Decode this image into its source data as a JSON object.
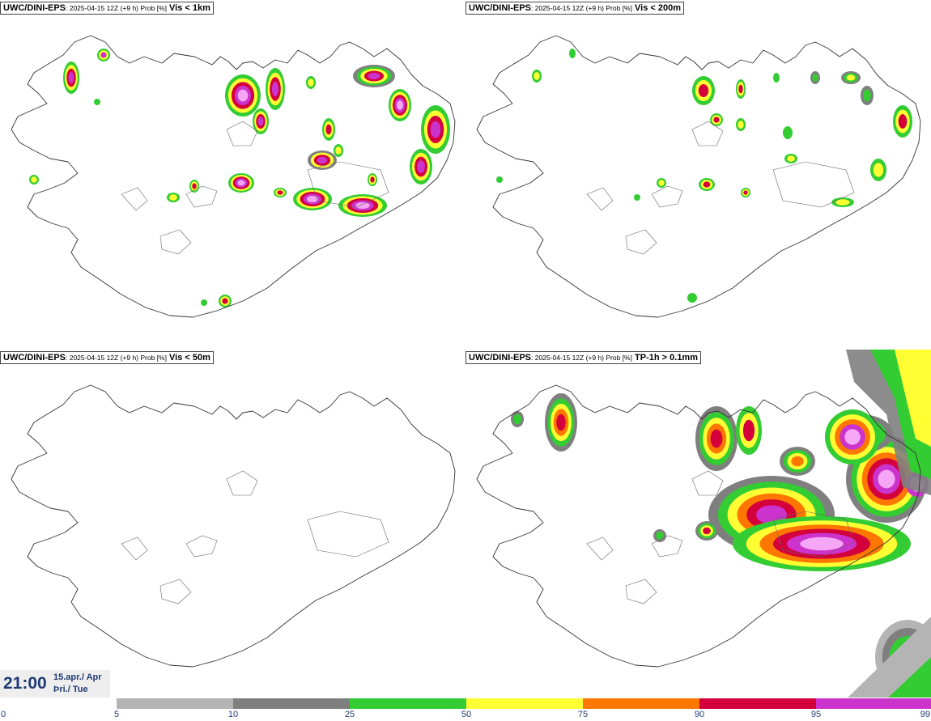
{
  "panels": [
    {
      "model": "UWC/DINI-EPS",
      "meta": ": 2025-04-15 12Z (+9 h) Prob [%]",
      "var": "Vis < 1km"
    },
    {
      "model": "UWC/DINI-EPS",
      "meta": ": 2025-04-15 12Z (+9 h) Prob [%]",
      "var": "Vis < 200m"
    },
    {
      "model": "UWC/DINI-EPS",
      "meta": ": 2025-04-15 12Z (+9 h) Prob [%]",
      "var": "Vis < 50m"
    },
    {
      "model": "UWC/DINI-EPS",
      "meta": ": 2025-04-15 12Z (+9 h) Prob [%]",
      "var": "TP-1h > 0.1mm"
    }
  ],
  "valid_time": {
    "clock": "21:00",
    "date_line1": "15.apr./ Apr",
    "date_line2": "Þri./ Tue"
  },
  "colorbar": {
    "ticks": [
      "0",
      "5",
      "10",
      "25",
      "50",
      "75",
      "90",
      "95",
      "99"
    ],
    "colors": [
      "#ffffff",
      "#b4b4b4",
      "#7f7f7f",
      "#33cc33",
      "#ffff33",
      "#ff7700",
      "#d4003c",
      "#cc33cc",
      "#f5a6f5"
    ],
    "tick_color": "#1f3b73"
  },
  "colors": {
    "coast": "#333333",
    "background": "#ffffff"
  },
  "field_colors": {
    "gray_light": "#b4b4b4",
    "gray_dark": "#7f7f7f",
    "green": "#33cc33",
    "yellow": "#ffff33",
    "orange": "#ff7700",
    "red": "#d4003c",
    "magenta": "#cc33cc",
    "pink": "#f5a6f5"
  }
}
